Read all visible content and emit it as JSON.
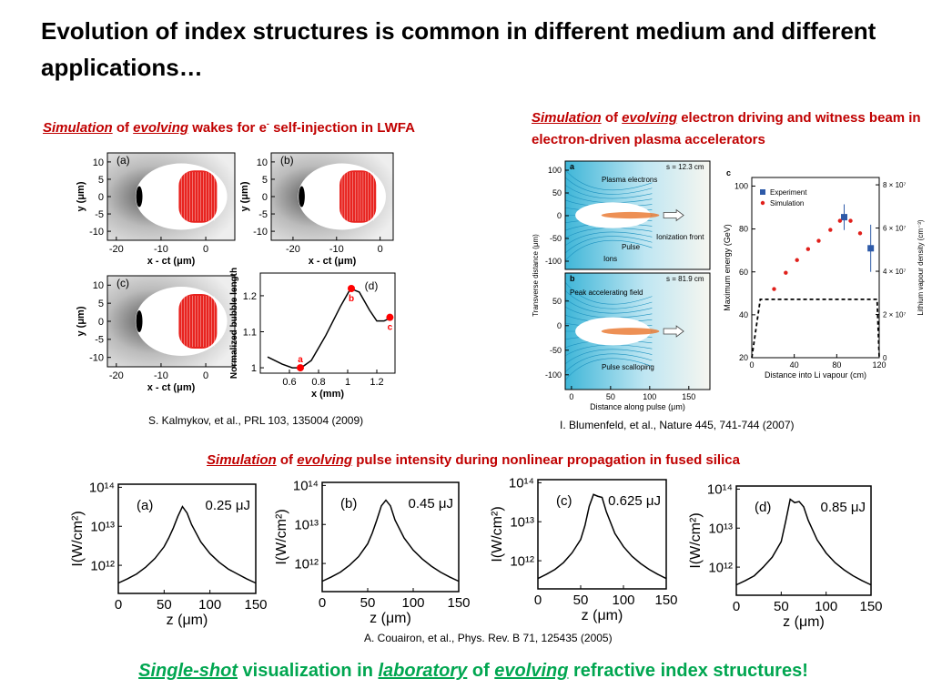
{
  "title": "Evolution of index structures is common in different medium and different applications…",
  "figures": [
    {
      "heading": [
        {
          "text": "Simulation",
          "style": "em"
        },
        {
          "text": " of "
        },
        {
          "text": "evolving",
          "style": "em"
        },
        {
          "text": " wakes for e"
        },
        {
          "text": "-",
          "style": "sup"
        },
        {
          "text": " self-injection in LWFA"
        }
      ],
      "citation": "S. Kalmykov, et al., PRL 103, 135004 (2009)",
      "panels": [
        {
          "kind": "wake",
          "labels": [
            "(a)"
          ],
          "xlim": [
            -22,
            6.5
          ],
          "ylim": [
            -12.6,
            12.6
          ],
          "xticks": [
            -20,
            -10,
            0
          ],
          "yticks": [
            -10,
            -5,
            0,
            5,
            10
          ],
          "xlabel": "x - ct (μm)",
          "ylabel": "y (μm)"
        },
        {
          "kind": "wake",
          "labels": [
            "(b)"
          ],
          "xlim": [
            -25,
            3
          ],
          "ylim": [
            -12.6,
            12.6
          ],
          "xticks": [
            -20,
            -10,
            0
          ],
          "yticks": [
            -10,
            -5,
            0,
            5,
            10
          ],
          "xlabel": "x - ct (μm)",
          "ylabel": "y (μm)"
        },
        {
          "kind": "wake",
          "labels": [
            "(c)"
          ],
          "xlim": [
            -22,
            6.5
          ],
          "ylim": [
            -12.6,
            12.6
          ],
          "xticks": [
            -20,
            -10,
            0
          ],
          "yticks": [
            -10,
            -5,
            0,
            5,
            10
          ],
          "xlabel": "x - ct (μm)",
          "ylabel": "y (μm)"
        },
        {
          "kind": "plot",
          "labels": [
            "(d)"
          ],
          "xlim": [
            0.4,
            1.325
          ],
          "ylim": [
            0.985,
            1.263
          ],
          "xticks": [
            0.6,
            0.8,
            1,
            1.2
          ],
          "yticks": [
            1,
            1.1,
            1.2
          ],
          "xlabel": "x (mm)",
          "ylabel": "Normalized bubble length",
          "series": [
            {
              "kind": "line",
              "color": "#000000",
              "x": [
                0.45,
                0.55,
                0.62,
                0.68,
                0.75,
                0.85,
                0.95,
                1.02,
                1.08,
                1.15,
                1.2,
                1.25,
                1.3
              ],
              "values": [
                1.03,
                1.01,
                1.0,
                1.0,
                1.02,
                1.09,
                1.17,
                1.22,
                1.21,
                1.16,
                1.13,
                1.13,
                1.14
              ]
            },
            {
              "kind": "scatter",
              "color": "#ff0000",
              "x": [
                0.675,
                1.025,
                1.29
              ],
              "values": [
                1.0,
                1.22,
                1.14
              ],
              "point_labels": [
                "a",
                "b",
                "c"
              ]
            }
          ]
        }
      ]
    },
    {
      "heading": [
        {
          "text": "Simulation",
          "style": "em"
        },
        {
          "text": " of "
        },
        {
          "text": "evolving",
          "style": "em"
        },
        {
          "text": " electron driving and witness beam in electron-driven plasma accelerators"
        }
      ],
      "citation": "I. Blumenfeld, et al., Nature 445, 741-744 (2007)",
      "ylabel": "Transverse distance (μm)",
      "panels": [
        {
          "kind": "plasma",
          "labels": [
            "a",
            "s = 12.3 cm",
            "Plasma electrons",
            "Pulse",
            "Ions",
            "Ionization front"
          ],
          "xlim": [
            -8,
            177
          ],
          "ylim": [
            -118,
            120
          ],
          "yticks": [
            -100,
            -50,
            0,
            50,
            100
          ]
        },
        {
          "kind": "plasma",
          "labels": [
            "b",
            "s = 81.9 cm",
            "Peak accelerating field",
            "Pulse scalloping"
          ],
          "xlim": [
            -8,
            177
          ],
          "ylim": [
            -130,
            107
          ],
          "xticks": [
            0,
            50,
            100,
            150
          ],
          "yticks": [
            -100,
            -50,
            0,
            50
          ],
          "xlabel": "Distance along pulse (μm)"
        },
        {
          "kind": "plot",
          "labels": [
            "c"
          ],
          "xlim": [
            0,
            120
          ],
          "ylim": [
            20,
            104
          ],
          "xticks": [
            0,
            40,
            80,
            120
          ],
          "yticks": [
            20,
            40,
            60,
            80,
            100
          ],
          "y2lim": [
            0,
            83400000
          ],
          "y2ticks": [
            0,
            {
              "value": 20000000,
              "label": "2 × 10⁷"
            },
            {
              "value": 40000000,
              "label": "4 × 10⁷"
            },
            {
              "value": 60000000,
              "label": "6 × 10⁷"
            },
            {
              "value": 80000000,
              "label": "8 × 10⁷"
            }
          ],
          "xlabel": "Distance into Li vapour (cm)",
          "ylabel": "Maximum energy (GeV)",
          "y2label": "Lithium vapour density (cm⁻³)",
          "legend": "upper left",
          "series": [
            {
              "kind": "dashed",
              "axis": "y2",
              "color": "#000000",
              "x": [
                0,
                8,
                118,
                120
              ],
              "values": [
                0,
                27000000,
                27000000,
                0
              ]
            },
            {
              "kind": "scatter",
              "name": "Experiment",
              "marker": "square",
              "color": "#2e5aa8",
              "x": [
                87,
                112
              ],
              "values": [
                85.5,
                71
              ],
              "errors": [
                6,
                11
              ]
            },
            {
              "kind": "scatter",
              "name": "Simulation",
              "color": "#e0201b",
              "x": [
                21,
                32,
                42.6,
                53,
                63,
                74,
                83,
                93,
                102
              ],
              "values": [
                52,
                59.6,
                65.5,
                70.6,
                74.5,
                79.6,
                83.8,
                83.8,
                78
              ]
            }
          ]
        }
      ]
    },
    {
      "heading": [
        {
          "text": "Simulation",
          "style": "em"
        },
        {
          "text": " of "
        },
        {
          "text": "evolving",
          "style": "em"
        },
        {
          "text": " pulse intensity during nonlinear propagation in fused silica"
        }
      ],
      "citation": "A. Couairon, et al., Phys. Rev. B 71, 125435 (2005)",
      "panels": [
        {
          "kind": "plot",
          "labels": [
            "(a)",
            "0.25 μJ"
          ],
          "xlim": [
            0,
            150
          ],
          "ylim": [
            190000000000,
            120000000000000
          ],
          "ylog": true,
          "xticks": [
            0,
            50,
            100,
            150
          ],
          "yticks": [
            {
              "value": 1000000000000,
              "label": "10¹²"
            },
            {
              "value": 10000000000000,
              "label": "10¹³"
            },
            {
              "value": 100000000000000,
              "label": "10¹⁴"
            }
          ],
          "xlabel": "z (μm)",
          "ylabel": "I(W/cm²)",
          "series": [
            {
              "kind": "line",
              "color": "#000000",
              "x": [
                0,
                10,
                20,
                30,
                40,
                50,
                55,
                60,
                65,
                70,
                75,
                80,
                90,
                100,
                110,
                120,
                130,
                140,
                150
              ],
              "values": [
                350000000000,
                450000000000,
                600000000000,
                900000000000,
                1500000000000,
                3000000000000,
                5000000000000,
                9000000000000,
                18000000000000,
                32000000000000,
                22000000000000,
                11000000000000,
                4000000000000,
                2000000000000,
                1200000000000,
                800000000000,
                600000000000,
                450000000000,
                350000000000
              ]
            }
          ]
        },
        {
          "kind": "plot",
          "labels": [
            "(b)",
            "0.45 μJ"
          ],
          "xlim": [
            0,
            150
          ],
          "ylim": [
            190000000000,
            120000000000000
          ],
          "ylog": true,
          "xticks": [
            0,
            50,
            100,
            150
          ],
          "yticks": [
            {
              "value": 1000000000000,
              "label": "10¹²"
            },
            {
              "value": 10000000000000,
              "label": "10¹³"
            },
            {
              "value": 100000000000000,
              "label": "10¹⁴"
            }
          ],
          "xlabel": "z (μm)",
          "ylabel": "I(W/cm²)",
          "series": [
            {
              "kind": "line",
              "color": "#000000",
              "x": [
                0,
                10,
                20,
                30,
                40,
                50,
                55,
                60,
                65,
                70,
                75,
                80,
                90,
                100,
                110,
                120,
                130,
                140,
                150
              ],
              "values": [
                350000000000,
                450000000000,
                600000000000,
                900000000000,
                1500000000000,
                3200000000000,
                6000000000000,
                13000000000000,
                30000000000000,
                42000000000000,
                30000000000000,
                13000000000000,
                4500000000000,
                2200000000000,
                1300000000000,
                850000000000,
                600000000000,
                450000000000,
                350000000000
              ]
            }
          ]
        },
        {
          "kind": "plot",
          "labels": [
            "(c)",
            "0.625 μJ"
          ],
          "xlim": [
            0,
            150
          ],
          "ylim": [
            190000000000,
            120000000000000
          ],
          "ylog": true,
          "xticks": [
            0,
            50,
            100,
            150
          ],
          "yticks": [
            {
              "value": 1000000000000,
              "label": "10¹²"
            },
            {
              "value": 10000000000000,
              "label": "10¹³"
            },
            {
              "value": 100000000000000,
              "label": "10¹⁴"
            }
          ],
          "xlabel": "z (μm)",
          "ylabel": "I(W/cm²)",
          "series": [
            {
              "kind": "line",
              "color": "#000000",
              "x": [
                0,
                10,
                20,
                30,
                40,
                50,
                55,
                60,
                65,
                70,
                75,
                80,
                90,
                100,
                110,
                120,
                130,
                140,
                150
              ],
              "values": [
                350000000000,
                450000000000,
                600000000000,
                900000000000,
                1600000000000,
                3500000000000,
                8000000000000,
                25000000000000,
                50000000000000,
                45000000000000,
                42000000000000,
                18000000000000,
                5000000000000,
                2300000000000,
                1300000000000,
                850000000000,
                600000000000,
                450000000000,
                350000000000
              ]
            }
          ]
        },
        {
          "kind": "plot",
          "labels": [
            "(d)",
            "0.85 μJ"
          ],
          "xlim": [
            0,
            150
          ],
          "ylim": [
            190000000000,
            120000000000000
          ],
          "ylog": true,
          "xticks": [
            0,
            50,
            100,
            150
          ],
          "yticks": [
            {
              "value": 1000000000000,
              "label": "10¹²"
            },
            {
              "value": 10000000000000,
              "label": "10¹³"
            },
            {
              "value": 100000000000000,
              "label": "10¹⁴"
            }
          ],
          "xlabel": "z (μm)",
          "ylabel": "I(W/cm²)",
          "series": [
            {
              "kind": "line",
              "color": "#000000",
              "x": [
                0,
                10,
                20,
                30,
                40,
                50,
                55,
                60,
                65,
                70,
                75,
                80,
                90,
                100,
                110,
                120,
                130,
                140,
                150
              ],
              "values": [
                350000000000,
                450000000000,
                600000000000,
                1000000000000,
                1800000000000,
                4500000000000,
                15000000000000,
                55000000000000,
                45000000000000,
                48000000000000,
                35000000000000,
                16000000000000,
                5000000000000,
                2300000000000,
                1300000000000,
                850000000000,
                600000000000,
                450000000000,
                350000000000
              ]
            }
          ]
        }
      ]
    }
  ],
  "footer": [
    {
      "text": "Single-shot",
      "style": "em"
    },
    {
      "text": " visualization in "
    },
    {
      "text": "laboratory",
      "style": "em"
    },
    {
      "text": " of "
    },
    {
      "text": "evolving",
      "style": "em"
    },
    {
      "text": " refractive index structures!"
    }
  ]
}
